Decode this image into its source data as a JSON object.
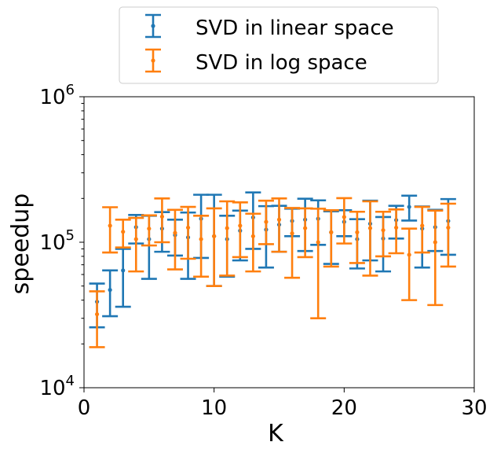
{
  "chart_data": {
    "type": "scatter",
    "title": "",
    "xlabel": "K",
    "ylabel": "speedup",
    "xlim": [
      0,
      30
    ],
    "ylim": [
      10000,
      1000000
    ],
    "yscale": "log",
    "grid": false,
    "legend_position": "top-center",
    "x_ticks": [
      {
        "value": 0,
        "label": "0"
      },
      {
        "value": 10,
        "label": "10"
      },
      {
        "value": 20,
        "label": "20"
      },
      {
        "value": 30,
        "label": "30"
      }
    ],
    "y_ticks": [
      {
        "value": 10000,
        "base": "10",
        "exp": "4"
      },
      {
        "value": 100000,
        "base": "10",
        "exp": "5"
      },
      {
        "value": 1000000,
        "base": "10",
        "exp": "6"
      }
    ],
    "series": [
      {
        "name": "SVD in linear space",
        "color": "#1f77b4",
        "points": [
          {
            "x": 1,
            "y": 39000,
            "lo": 26000,
            "hi": 52000
          },
          {
            "x": 2,
            "y": 47000,
            "lo": 31000,
            "hi": 64000
          },
          {
            "x": 3,
            "y": 64000,
            "lo": 36000,
            "hi": 90000
          },
          {
            "x": 4,
            "y": 127000,
            "lo": 98000,
            "hi": 154000
          },
          {
            "x": 5,
            "y": 105000,
            "lo": 56000,
            "hi": 152000
          },
          {
            "x": 6,
            "y": 124000,
            "lo": 86000,
            "hi": 161000
          },
          {
            "x": 7,
            "y": 112000,
            "lo": 81000,
            "hi": 143000
          },
          {
            "x": 8,
            "y": 108000,
            "lo": 56000,
            "hi": 160000
          },
          {
            "x": 9,
            "y": 145000,
            "lo": 78000,
            "hi": 212000
          },
          {
            "x": 10,
            "y": 110000,
            "lo": 50000,
            "hi": 212000
          },
          {
            "x": 11,
            "y": 105000,
            "lo": 58000,
            "hi": 152000
          },
          {
            "x": 12,
            "y": 120000,
            "lo": 75000,
            "hi": 165000
          },
          {
            "x": 13,
            "y": 148000,
            "lo": 90000,
            "hi": 220000
          },
          {
            "x": 14,
            "y": 122000,
            "lo": 67000,
            "hi": 177000
          },
          {
            "x": 15,
            "y": 132000,
            "lo": 86000,
            "hi": 178000
          },
          {
            "x": 16,
            "y": 140000,
            "lo": 110000,
            "hi": 170000
          },
          {
            "x": 17,
            "y": 143000,
            "lo": 87000,
            "hi": 199000
          },
          {
            "x": 18,
            "y": 145000,
            "lo": 96000,
            "hi": 194000
          },
          {
            "x": 19,
            "y": 117000,
            "lo": 71000,
            "hi": 163000
          },
          {
            "x": 20,
            "y": 138000,
            "lo": 110000,
            "hi": 166000
          },
          {
            "x": 21,
            "y": 105000,
            "lo": 66000,
            "hi": 144000
          },
          {
            "x": 22,
            "y": 134000,
            "lo": 75000,
            "hi": 193000
          },
          {
            "x": 23,
            "y": 106000,
            "lo": 63000,
            "hi": 149000
          },
          {
            "x": 24,
            "y": 142000,
            "lo": 106000,
            "hi": 178000
          },
          {
            "x": 25,
            "y": 175000,
            "lo": 141000,
            "hi": 209000
          },
          {
            "x": 26,
            "y": 124000,
            "lo": 67000,
            "hi": 176000
          },
          {
            "x": 27,
            "y": 127000,
            "lo": 87000,
            "hi": 167000
          },
          {
            "x": 28,
            "y": 140000,
            "lo": 82000,
            "hi": 198000
          }
        ]
      },
      {
        "name": "SVD in log space",
        "color": "#ff7f0e",
        "points": [
          {
            "x": 1,
            "y": 32000,
            "lo": 19000,
            "hi": 46000
          },
          {
            "x": 2,
            "y": 130000,
            "lo": 85000,
            "hi": 174000
          },
          {
            "x": 3,
            "y": 118000,
            "lo": 92000,
            "hi": 143000
          },
          {
            "x": 4,
            "y": 105000,
            "lo": 63000,
            "hi": 147000
          },
          {
            "x": 5,
            "y": 124000,
            "lo": 95000,
            "hi": 153000
          },
          {
            "x": 6,
            "y": 150000,
            "lo": 100000,
            "hi": 200000
          },
          {
            "x": 7,
            "y": 116000,
            "lo": 65000,
            "hi": 167000
          },
          {
            "x": 8,
            "y": 126000,
            "lo": 77000,
            "hi": 175000
          },
          {
            "x": 9,
            "y": 105000,
            "lo": 58000,
            "hi": 152000
          },
          {
            "x": 10,
            "y": 110000,
            "lo": 50000,
            "hi": 171000
          },
          {
            "x": 11,
            "y": 125000,
            "lo": 59000,
            "hi": 191000
          },
          {
            "x": 12,
            "y": 130000,
            "lo": 79000,
            "hi": 188000
          },
          {
            "x": 13,
            "y": 110000,
            "lo": 63000,
            "hi": 157000
          },
          {
            "x": 14,
            "y": 138000,
            "lo": 97000,
            "hi": 193000
          },
          {
            "x": 15,
            "y": 143000,
            "lo": 86000,
            "hi": 200000
          },
          {
            "x": 16,
            "y": 115000,
            "lo": 57000,
            "hi": 172000
          },
          {
            "x": 17,
            "y": 125000,
            "lo": 79000,
            "hi": 171000
          },
          {
            "x": 18,
            "y": 100000,
            "lo": 30000,
            "hi": 170000
          },
          {
            "x": 19,
            "y": 117000,
            "lo": 68000,
            "hi": 166000
          },
          {
            "x": 20,
            "y": 149000,
            "lo": 98000,
            "hi": 201000
          },
          {
            "x": 21,
            "y": 117000,
            "lo": 72000,
            "hi": 162000
          },
          {
            "x": 22,
            "y": 125000,
            "lo": 59000,
            "hi": 191000
          },
          {
            "x": 23,
            "y": 121000,
            "lo": 80000,
            "hi": 162000
          },
          {
            "x": 24,
            "y": 126000,
            "lo": 84000,
            "hi": 168000
          },
          {
            "x": 25,
            "y": 82000,
            "lo": 40000,
            "hi": 124000
          },
          {
            "x": 26,
            "y": 130000,
            "lo": 85000,
            "hi": 175000
          },
          {
            "x": 27,
            "y": 100000,
            "lo": 37000,
            "hi": 165000
          },
          {
            "x": 28,
            "y": 126000,
            "lo": 68000,
            "hi": 184000
          }
        ]
      }
    ]
  }
}
